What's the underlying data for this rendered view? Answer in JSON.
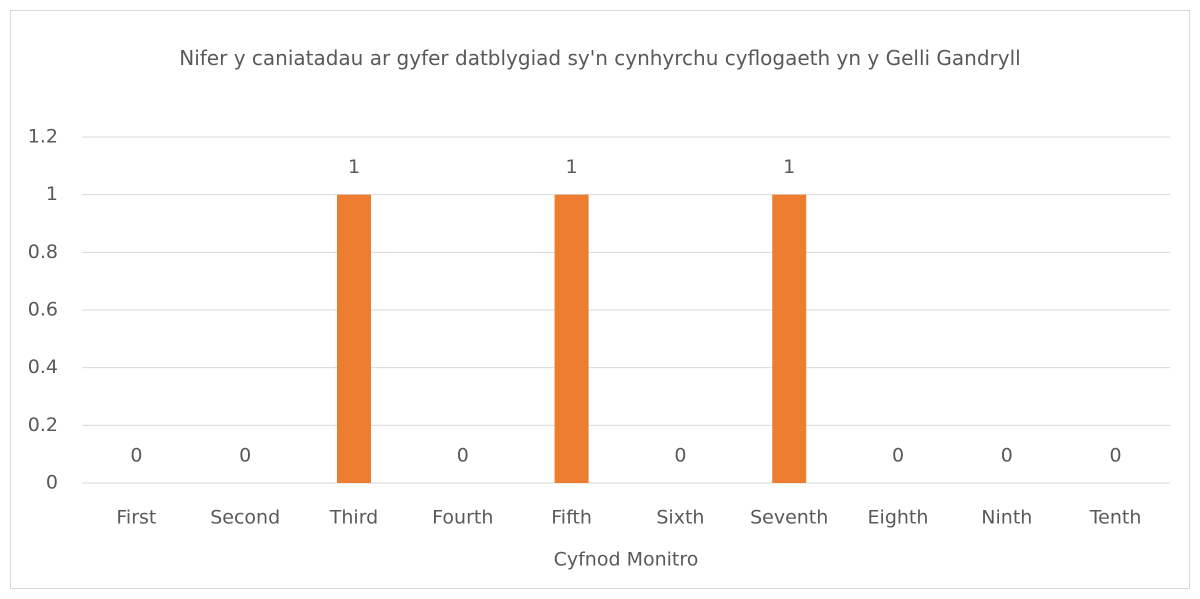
{
  "chart_data": {
    "type": "bar",
    "title": "Nifer y caniatadau ar gyfer datblygiad sy'n cynhyrchu cyflogaeth yn y Gelli Gandryll",
    "x_label": "Cyfnod Monitro",
    "categories": [
      "First",
      "Second",
      "Third",
      "Fourth",
      "Fifth",
      "Sixth",
      "Seventh",
      "Eighth",
      "Ninth",
      "Tenth"
    ],
    "values": [
      0,
      0,
      1,
      0,
      1,
      0,
      1,
      0,
      0,
      0
    ],
    "color": "#ED7D31",
    "ylim": [
      0,
      1.2
    ],
    "yticks": [
      0,
      0.2,
      0.4,
      0.6,
      0.8,
      1,
      1.2
    ],
    "grid": true
  }
}
